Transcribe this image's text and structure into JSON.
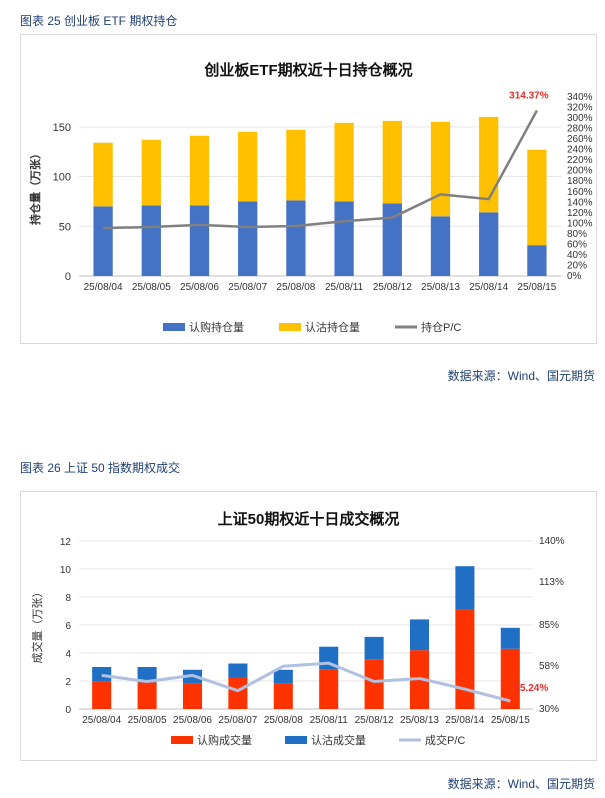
{
  "figure1": {
    "caption": "图表 25 创业板 ETF 期权持仓",
    "source": "数据来源：Wind、国元期货",
    "chart_data": {
      "type": "bar",
      "stacked": true,
      "title": "创业板ETF期权近十日持仓概况",
      "ylabel": "持仓量（万张）",
      "ylim": [
        0,
        180
      ],
      "yticks": [
        "0",
        "50",
        "100",
        "150"
      ],
      "y2lim": [
        0,
        340
      ],
      "y2ticks": [
        "0%",
        "20%",
        "40%",
        "60%",
        "80%",
        "100%",
        "120%",
        "140%",
        "160%",
        "180%",
        "200%",
        "220%",
        "240%",
        "260%",
        "280%",
        "300%",
        "320%",
        "340%"
      ],
      "categories": [
        "25/08/04",
        "25/08/05",
        "25/08/06",
        "25/08/07",
        "25/08/08",
        "25/08/11",
        "25/08/12",
        "25/08/13",
        "25/08/14",
        "25/08/15"
      ],
      "series": [
        {
          "name": "认购持仓量",
          "color": "#4472C4",
          "values": [
            70,
            71,
            71,
            75,
            76,
            75,
            73,
            60,
            64,
            31
          ]
        },
        {
          "name": "认沽持仓量",
          "color": "#FFC000",
          "values": [
            64,
            66,
            70,
            70,
            71,
            79,
            83,
            95,
            96,
            96
          ]
        },
        {
          "name": "持仓P/C",
          "color": "#808080",
          "axis": "right",
          "values": [
            91,
            93,
            97,
            93,
            95,
            104,
            111,
            155,
            146,
            314.37
          ]
        }
      ],
      "annotation": "314.37%",
      "annotation_color": "#e0302a",
      "legend": "bottom",
      "grid": true
    }
  },
  "figure2": {
    "caption": "图表 26 上证 50 指数期权成交",
    "source": "数据来源：Wind、国元期货",
    "chart_data": {
      "type": "bar",
      "stacked": true,
      "title": "上证50期权近十日成交概况",
      "ylabel": "成交量（万张）",
      "ylim": [
        0,
        12
      ],
      "yticks": [
        "0",
        "2",
        "4",
        "6",
        "8",
        "10",
        "12"
      ],
      "y2lim": [
        30,
        140
      ],
      "y2ticks": [
        "30%",
        "58%",
        "85%",
        "113%",
        "140%"
      ],
      "categories": [
        "25/08/04",
        "25/08/05",
        "25/08/06",
        "25/08/07",
        "25/08/08",
        "25/08/11",
        "25/08/12",
        "25/08/13",
        "25/08/14",
        "25/08/15"
      ],
      "series": [
        {
          "name": "认购成交量",
          "color": "#FF3300",
          "values": [
            1.95,
            1.9,
            1.85,
            2.25,
            1.8,
            2.8,
            3.55,
            4.2,
            7.1,
            4.3
          ]
        },
        {
          "name": "认沽成交量",
          "color": "#1F6FC5",
          "values": [
            1.05,
            1.1,
            0.95,
            1.0,
            1.0,
            1.65,
            1.6,
            2.2,
            3.1,
            1.5
          ]
        },
        {
          "name": "成交P/C",
          "color": "#AFC0E0",
          "axis": "right",
          "values": [
            52,
            48,
            52,
            42,
            58,
            60,
            48,
            50,
            43,
            35.24
          ]
        }
      ],
      "annotation": "35.24%",
      "annotation_color": "#e0302a",
      "legend": "bottom",
      "grid": true
    }
  }
}
